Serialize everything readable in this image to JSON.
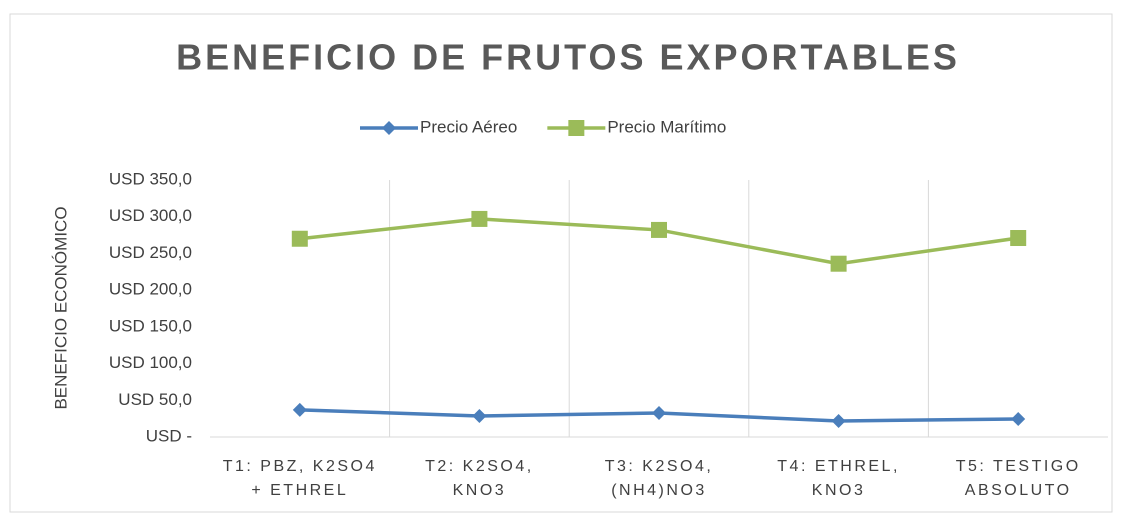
{
  "chart_data": {
    "type": "line",
    "title": "BENEFICIO DE FRUTOS EXPORTABLES",
    "y_label": "BENEFICIO ECONÓMICO",
    "categories": [
      [
        "T1: PBZ, K2SO4",
        "+ ETHREL"
      ],
      [
        "T2: K2SO4,",
        "KNO3"
      ],
      [
        "T3: K2SO4,",
        "(NH4)NO3"
      ],
      [
        "T4: ETHREL,",
        "KNO3"
      ],
      [
        "T5: TESTIGO",
        "ABSOLUTO"
      ]
    ],
    "series": [
      {
        "name": "Precio Aéreo",
        "color": "#4a7ebb",
        "marker": "diamond",
        "values": [
          37,
          28.6,
          32.7,
          21.8,
          24.5
        ]
      },
      {
        "name": "Precio Marítimo",
        "color": "#9bbb59",
        "marker": "square",
        "values": [
          270,
          297,
          282,
          236,
          271
        ]
      }
    ],
    "ylim": [
      0,
      350
    ],
    "yticks": [
      {
        "value": 0,
        "label": "USD -"
      },
      {
        "value": 50,
        "label": "USD 50,0"
      },
      {
        "value": 100,
        "label": "USD 100,0"
      },
      {
        "value": 150,
        "label": "USD 150,0"
      },
      {
        "value": 200,
        "label": "USD 200,0"
      },
      {
        "value": 250,
        "label": "USD 250,0"
      },
      {
        "value": 300,
        "label": "USD 300,0"
      },
      {
        "value": 350,
        "label": "USD 350,0"
      }
    ],
    "grid": "vertical",
    "legend": "top"
  }
}
